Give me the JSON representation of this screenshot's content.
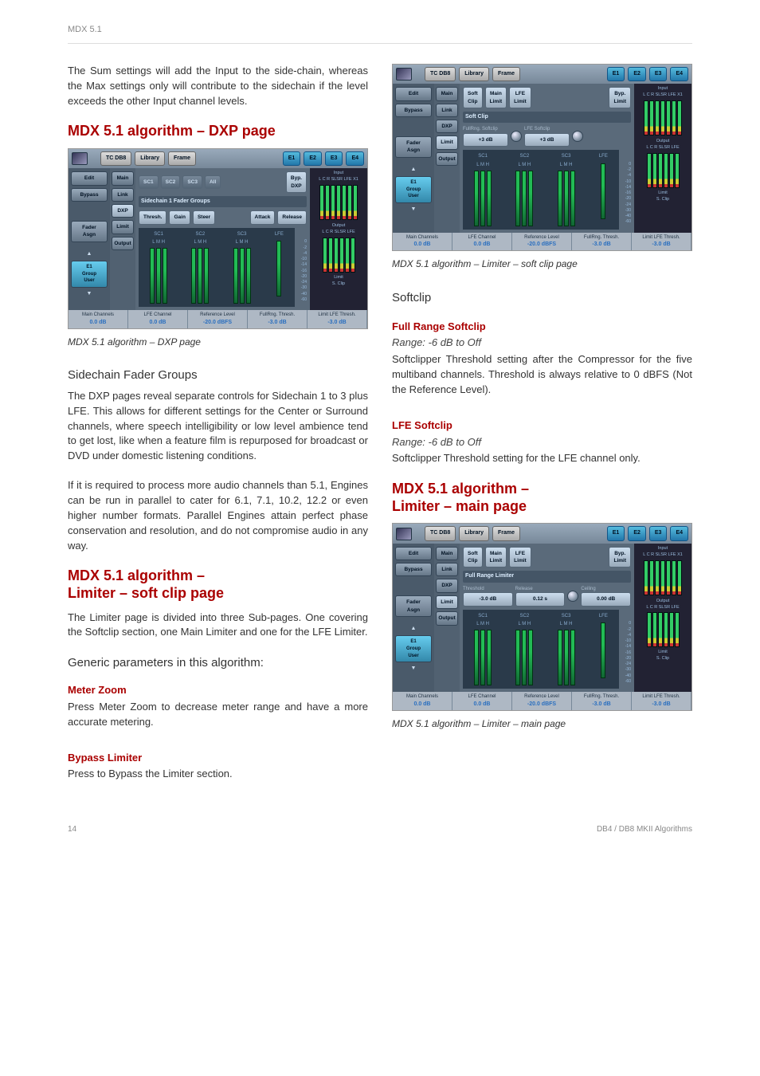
{
  "header": {
    "product": "MDX 5.1"
  },
  "left": {
    "intro": "The Sum settings will add the Input to the side-chain, whereas the Max settings only will contribute to the sidechain if the level exceeds the other Input channel levels.",
    "h_dxp": "MDX 5.1 algorithm – DXP page",
    "cap_dxp": "MDX 5.1 algorithm – DXP page",
    "h_sidechain": "Sidechain Fader Groups",
    "p_sidechain": "The DXP pages reveal separate controls for Sidechain 1 to 3 plus LFE. This allows for different settings for the Center or Surround channels, where speech intelligibility or low level ambience tend to get lost, like when a feature film is repurposed for broadcast or DVD under domestic listening conditions.",
    "p_parallel": "If it is required to process more audio channels than 5.1, Engines can be run in parallel to cater for 6.1, 7.1, 10.2, 12.2 or even higher number formats. Parallel Engines attain perfect phase conservation and resolution, and do not compromise audio in any way.",
    "h_lim_soft": "MDX 5.1 algorithm –\nLimiter – soft clip page",
    "p_lim_soft": "The Limiter page is divided into three Sub-pages. One covering the Softclip section, one Main Limiter and one for the LFE Limiter.",
    "h_generic": "Generic parameters in this algorithm:",
    "h_meter": "Meter Zoom",
    "p_meter": "Press Meter Zoom to decrease meter range and have a more accurate metering.",
    "h_bypass": "Bypass Limiter",
    "p_bypass": "Press to Bypass the Limiter section."
  },
  "right": {
    "cap_soft": "MDX 5.1 algorithm – Limiter – soft clip page",
    "h_softclip": "Softclip",
    "h_full": "Full Range Softclip",
    "r_full": "Range: -6 dB to Off",
    "p_full": "Softclipper Threshold setting after the Compressor for the five multiband channels. Threshold is always relative to 0 dBFS (Not the Reference Level).",
    "h_lfe": "LFE Softclip",
    "r_lfe": "Range: -6 dB to Off",
    "p_lfe": "Softclipper Threshold setting for the LFE channel only.",
    "h_lim_main": "MDX 5.1 algorithm –\nLimiter – main page",
    "cap_main": "MDX 5.1 algorithm – Limiter – main page"
  },
  "footer": {
    "page": "14",
    "doc": "DB4 / DB8 MKII Algorithms"
  },
  "ss_common": {
    "top_tabs": [
      "TC DB8",
      "Library",
      "Frame"
    ],
    "engines": [
      "E1",
      "E2",
      "E3",
      "E4"
    ],
    "side_a": [
      "Edit",
      "Bypass"
    ],
    "side_b_dxp": [
      "Main",
      "Link",
      "DXP",
      "Limit",
      "Output"
    ],
    "side_b_soft": [
      "Main",
      "Link",
      "DXP",
      "Limit",
      "Output"
    ],
    "e1_group": "E1\nGroup\nUser",
    "status": [
      {
        "lbl": "Main Channels",
        "val": "0.0 dB"
      },
      {
        "lbl": "LFE Channel",
        "val": "0.0 dB"
      },
      {
        "lbl": "Reference Level",
        "val": "-20.0 dBFS"
      },
      {
        "lbl": "FullRng. Thresh.",
        "val": "-3.0 dB"
      },
      {
        "lbl": "Limit LFE Thresh.",
        "val": "-3.0 dB"
      }
    ],
    "meter_in": "Input",
    "meter_in_ch": "L C R SLSR LFE X1",
    "meter_out": "Output",
    "meter_out_ch": "L C R SLSR LFE",
    "fader_groups": [
      "SC1",
      "SC2",
      "SC3",
      "LFE"
    ],
    "fader_sub": "L M H",
    "scale_vals": [
      "0",
      "-2",
      "-4",
      "-10",
      "-14",
      "-16",
      "-20",
      "-24",
      "-30",
      "-40",
      "-60"
    ]
  },
  "ss_dxp": {
    "row1": [
      "SC1",
      "SC2",
      "SC3",
      "All"
    ],
    "byp": "Byp.\nDXP",
    "sect": "Sidechain 1 Fader Groups",
    "row2": [
      "Thresh.",
      "Gain",
      "Steer",
      "Attack",
      "Release"
    ],
    "limit_lbl": "Limit\nS. Clip",
    "fader_asgn": "Fader\nAsgn"
  },
  "ss_soft": {
    "row1": [
      "Soft\nClip",
      "Main\nLimit",
      "LFE\nLimit"
    ],
    "byp": "Byp.\nLimit",
    "sect": "Soft Clip",
    "sub1": "FullRng. Softclip",
    "sub2": "LFE Softclip",
    "val": "+3 dB",
    "limit_lbl": "Limit\nS. Clip",
    "fader_asgn": "Fader\nAsgn"
  },
  "ss_main": {
    "row1": [
      "Soft\nClip",
      "Main\nLimit",
      "LFE\nLimit"
    ],
    "byp": "Byp.\nLimit",
    "sect": "Full Range Limiter",
    "sub_lbls": [
      "Threshold",
      "Release",
      "Ceiling"
    ],
    "sub_vals": [
      "-3.0 dB",
      "0.12 s",
      "0.00 dB"
    ],
    "limit_lbl": "Limit\nS. Clip",
    "fader_asgn": "Fader\nAsgn"
  }
}
